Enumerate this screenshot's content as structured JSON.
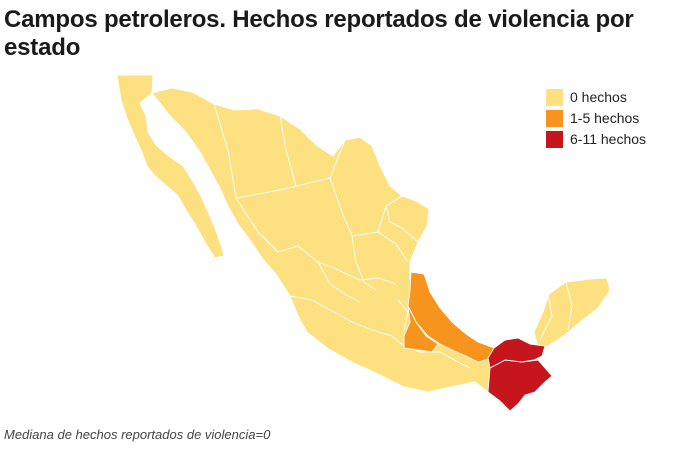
{
  "title": "Campos petroleros. Hechos reportados de violencia por estado",
  "footnote": "Mediana de hechos reportados de violencia=0",
  "legend": [
    {
      "label": "0 hechos",
      "color": "#fde07f"
    },
    {
      "label": "1-5 hechos",
      "color": "#f7941d"
    },
    {
      "label": "6-11 hechos",
      "color": "#c4161c"
    }
  ],
  "map_data": {
    "type": "choropleth",
    "country": "México",
    "default_category": "0 hechos",
    "highlighted_regions": [
      {
        "category": "1-5 hechos",
        "color": "#f7941d"
      },
      {
        "category": "6-11 hechos",
        "color": "#c4161c"
      }
    ]
  }
}
